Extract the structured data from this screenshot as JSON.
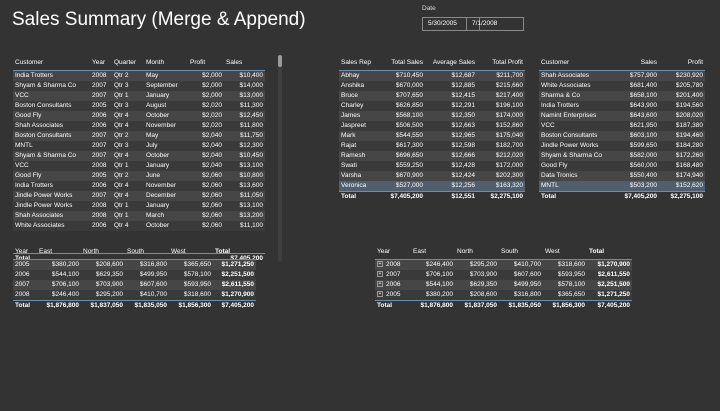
{
  "title": "Sales Summary (Merge & Append)",
  "date_filter": {
    "label": "Date",
    "start": "5/30/2005",
    "end": "7/1/2008"
  },
  "sales_table": {
    "headers": [
      "Customer",
      "Year",
      "Quarter",
      "Month",
      "Profit",
      "Sales"
    ],
    "rows": [
      [
        "India Trotters",
        "2008",
        "Qtr 2",
        "May",
        "$2,000",
        "$10,400"
      ],
      [
        "Shyam & Sharma Co",
        "2007",
        "Qtr 3",
        "September",
        "$2,000",
        "$14,000"
      ],
      [
        "VCC",
        "2007",
        "Qtr 1",
        "January",
        "$2,000",
        "$13,000"
      ],
      [
        "Boston Consultants",
        "2005",
        "Qtr 3",
        "August",
        "$2,020",
        "$11,300"
      ],
      [
        "Good Fly",
        "2006",
        "Qtr 4",
        "October",
        "$2,020",
        "$12,450"
      ],
      [
        "Shah Associates",
        "2006",
        "Qtr 4",
        "November",
        "$2,020",
        "$11,800"
      ],
      [
        "Boston Consultants",
        "2007",
        "Qtr 2",
        "May",
        "$2,040",
        "$11,750"
      ],
      [
        "MNTL",
        "2007",
        "Qtr 3",
        "July",
        "$2,040",
        "$12,300"
      ],
      [
        "Shyam & Sharma Co",
        "2007",
        "Qtr 4",
        "October",
        "$2,040",
        "$10,450"
      ],
      [
        "VCC",
        "2008",
        "Qtr 1",
        "January",
        "$2,040",
        "$13,100"
      ],
      [
        "Good Fly",
        "2005",
        "Qtr 2",
        "June",
        "$2,060",
        "$10,800"
      ],
      [
        "India Trotters",
        "2006",
        "Qtr 4",
        "November",
        "$2,060",
        "$13,600"
      ],
      [
        "Jindle Power Works",
        "2007",
        "Qtr 4",
        "December",
        "$2,060",
        "$11,050"
      ],
      [
        "Jindle Power Works",
        "2008",
        "Qtr 1",
        "January",
        "$2,060",
        "$13,100"
      ],
      [
        "Shah Associates",
        "2008",
        "Qtr 1",
        "March",
        "$2,060",
        "$13,200"
      ],
      [
        "White Associates",
        "2006",
        "Qtr 4",
        "October",
        "$2,060",
        "$11,100"
      ]
    ],
    "total": [
      "Total",
      "",
      "",
      "",
      "",
      "$7,405,200"
    ]
  },
  "rep_table": {
    "headers": [
      "Sales Rep",
      "Total Sales",
      "Average Sales",
      "Total Profit"
    ],
    "rows": [
      [
        "Abhay",
        "$710,450",
        "$12,687",
        "$211,700"
      ],
      [
        "Anshika",
        "$670,000",
        "$12,885",
        "$215,660"
      ],
      [
        "Bruce",
        "$707,650",
        "$12,415",
        "$217,400"
      ],
      [
        "Charley",
        "$626,850",
        "$12,291",
        "$196,100"
      ],
      [
        "James",
        "$568,100",
        "$12,350",
        "$174,000"
      ],
      [
        "Jaspreet",
        "$506,500",
        "$12,663",
        "$152,860"
      ],
      [
        "Mark",
        "$544,550",
        "$12,965",
        "$175,040"
      ],
      [
        "Rajat",
        "$617,300",
        "$12,598",
        "$182,700"
      ],
      [
        "Ramesh",
        "$696,650",
        "$12,666",
        "$212,020"
      ],
      [
        "Swati",
        "$559,250",
        "$12,428",
        "$172,000"
      ],
      [
        "Varsha",
        "$670,900",
        "$12,424",
        "$202,300"
      ],
      [
        "Veronica",
        "$527,000",
        "$12,256",
        "$163,320"
      ]
    ],
    "total": [
      "Total",
      "$7,405,200",
      "$12,551",
      "$2,275,100"
    ]
  },
  "customer_table": {
    "headers": [
      "Customer",
      "Sales",
      "Profit"
    ],
    "rows": [
      [
        "Shah Associates",
        "$757,900",
        "$230,920"
      ],
      [
        "White Associates",
        "$681,400",
        "$205,780"
      ],
      [
        "Sharma & Co",
        "$658,100",
        "$201,400"
      ],
      [
        "India Trotters",
        "$643,900",
        "$194,560"
      ],
      [
        "Namint Enterprises",
        "$643,600",
        "$208,020"
      ],
      [
        "VCC",
        "$621,950",
        "$187,380"
      ],
      [
        "Boston Consultants",
        "$603,100",
        "$194,460"
      ],
      [
        "Jindle Power Works",
        "$599,650",
        "$184,280"
      ],
      [
        "Shyam & Sharma Co",
        "$582,000",
        "$172,260"
      ],
      [
        "Good Fly",
        "$560,000",
        "$168,480"
      ],
      [
        "Data Tronics",
        "$550,400",
        "$174,940"
      ],
      [
        "MNTL",
        "$503,200",
        "$152,620"
      ]
    ],
    "total": [
      "Total",
      "$7,405,200",
      "$2,275,100"
    ]
  },
  "region_table": {
    "headers": [
      "Year",
      "East",
      "North",
      "South",
      "West",
      "Total"
    ],
    "rows": [
      [
        "2005",
        "$380,200",
        "$208,600",
        "$316,800",
        "$365,650",
        "$1,271,250"
      ],
      [
        "2006",
        "$544,100",
        "$629,350",
        "$499,950",
        "$578,100",
        "$2,251,500"
      ],
      [
        "2007",
        "$706,100",
        "$703,900",
        "$607,600",
        "$593,950",
        "$2,611,550"
      ],
      [
        "2008",
        "$246,400",
        "$295,200",
        "$410,700",
        "$318,600",
        "$1,270,900"
      ]
    ],
    "total": [
      "Total",
      "$1,876,800",
      "$1,837,050",
      "$1,835,050",
      "$1,856,300",
      "$7,405,200"
    ]
  },
  "region_table_2": {
    "headers": [
      "Year",
      "East",
      "North",
      "South",
      "West",
      "Total"
    ],
    "rows": [
      [
        "2008",
        "$246,400",
        "$295,200",
        "$410,700",
        "$318,600",
        "$1,270,900"
      ],
      [
        "2007",
        "$706,100",
        "$703,900",
        "$607,600",
        "$593,950",
        "$2,611,550"
      ],
      [
        "2006",
        "$544,100",
        "$629,350",
        "$499,950",
        "$578,100",
        "$2,251,500"
      ],
      [
        "2005",
        "$380,200",
        "$208,600",
        "$316,800",
        "$365,650",
        "$1,271,250"
      ]
    ],
    "total": [
      "Total",
      "$1,876,800",
      "$1,837,050",
      "$1,835,050",
      "$1,856,300",
      "$7,405,200"
    ],
    "expand_icon": "expand-plus-icon"
  }
}
